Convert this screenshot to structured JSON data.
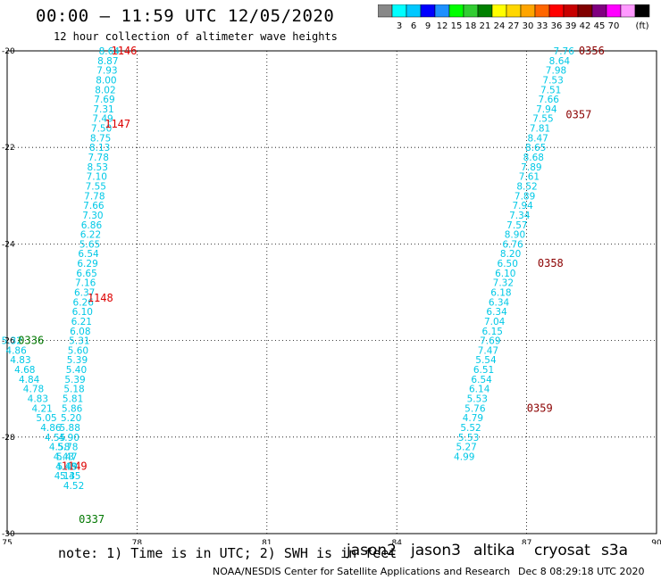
{
  "header": {
    "title": "00:00 – 11:59 UTC 12/05/2020",
    "subtitle": "12 hour collection of altimeter wave heights"
  },
  "colorbar": {
    "unit_label": "(ft)",
    "ticks": [
      "3",
      "6",
      "9",
      "12",
      "15",
      "18",
      "21",
      "24",
      "27",
      "30",
      "33",
      "36",
      "39",
      "42",
      "45",
      "70"
    ],
    "colors": [
      "#888888",
      "#00ffff",
      "#00c8ff",
      "#0000ff",
      "#1e90ff",
      "#00ff00",
      "#32cd32",
      "#008000",
      "#ffff00",
      "#ffd700",
      "#ffa500",
      "#ff6600",
      "#ff0000",
      "#c80000",
      "#800000",
      "#800080",
      "#ff00ff",
      "#ff99ff",
      "#000000"
    ]
  },
  "map": {
    "x_ticks": [
      "75",
      "78",
      "81",
      "84",
      "87",
      "90"
    ],
    "y_ticks": [
      "-20",
      "-22",
      "-24",
      "-26",
      "-28",
      "-30"
    ],
    "lon_range": [
      75,
      90
    ],
    "lat_range": [
      -30,
      -20
    ],
    "grid": true
  },
  "tracks": [
    {
      "name": "west-cyan",
      "color": "#00c8e6",
      "points": [
        [
          77.6,
          -20.0,
          "8.64"
        ],
        [
          77.57,
          -20.2,
          "8.87"
        ],
        [
          77.55,
          -20.4,
          "7.93"
        ],
        [
          77.53,
          -20.6,
          "8.00"
        ],
        [
          77.51,
          -20.8,
          "8.02"
        ],
        [
          77.49,
          -21.0,
          "7.69"
        ],
        [
          77.47,
          -21.2,
          "7.31"
        ],
        [
          77.45,
          -21.4,
          "7.49"
        ],
        [
          77.42,
          -21.6,
          "7.50"
        ],
        [
          77.4,
          -21.8,
          "8.75"
        ],
        [
          77.38,
          -22.0,
          "8.13"
        ],
        [
          77.35,
          -22.2,
          "7.78"
        ],
        [
          77.33,
          -22.4,
          "8.53"
        ],
        [
          77.31,
          -22.6,
          "7.10"
        ],
        [
          77.29,
          -22.8,
          "7.55"
        ],
        [
          77.26,
          -23.0,
          "7.78"
        ],
        [
          77.24,
          -23.2,
          "7.66"
        ],
        [
          77.22,
          -23.4,
          "7.30"
        ],
        [
          77.19,
          -23.6,
          "6.86"
        ],
        [
          77.17,
          -23.8,
          "6.22"
        ],
        [
          77.15,
          -24.0,
          "5.65"
        ],
        [
          77.12,
          -24.2,
          "6.54"
        ],
        [
          77.1,
          -24.4,
          "6.29"
        ],
        [
          77.08,
          -24.6,
          "6.65"
        ],
        [
          77.05,
          -24.8,
          "7.16"
        ],
        [
          77.03,
          -25.0,
          "6.37"
        ],
        [
          77.0,
          -25.2,
          "6.26"
        ],
        [
          76.98,
          -25.4,
          "6.10"
        ],
        [
          76.96,
          -25.6,
          "6.21"
        ],
        [
          76.93,
          -25.8,
          "6.08"
        ],
        [
          76.91,
          -26.0,
          "5.31"
        ],
        [
          76.88,
          -26.2,
          "5.60"
        ],
        [
          76.86,
          -26.4,
          "5.39"
        ],
        [
          76.84,
          -26.6,
          "5.40"
        ],
        [
          76.81,
          -26.8,
          "5.39"
        ],
        [
          76.79,
          -27.0,
          "5.18"
        ],
        [
          76.76,
          -27.2,
          "5.81"
        ],
        [
          76.74,
          -27.4,
          "5.86"
        ],
        [
          76.72,
          -27.6,
          "5.20"
        ],
        [
          76.69,
          -27.8,
          "5.88"
        ],
        [
          76.67,
          -28.0,
          "4.90"
        ],
        [
          76.64,
          -28.2,
          "5.78"
        ],
        [
          76.62,
          -28.4,
          "5.47"
        ],
        [
          76.6,
          -28.6,
          "4.48"
        ],
        [
          76.57,
          -28.8,
          "4.13"
        ]
      ],
      "time_labels": [
        [
          78.0,
          -20.0,
          "1146"
        ],
        [
          77.85,
          -21.52,
          "1147"
        ],
        [
          77.45,
          -25.12,
          "1148"
        ],
        [
          76.85,
          -28.6,
          "1149"
        ]
      ],
      "time_color": "#dd0000"
    },
    {
      "name": "west-jason3",
      "color": "#00c8e6",
      "points": [
        [
          75.35,
          -26.0,
          "5.32"
        ],
        [
          75.45,
          -26.2,
          "4.86"
        ],
        [
          75.55,
          -26.4,
          "4.83"
        ],
        [
          75.65,
          -26.6,
          "4.68"
        ],
        [
          75.75,
          -26.8,
          "4.84"
        ],
        [
          75.85,
          -27.0,
          "4.78"
        ],
        [
          75.95,
          -27.2,
          "4.83"
        ],
        [
          76.05,
          -27.4,
          "4.21"
        ],
        [
          76.15,
          -27.6,
          "5.05"
        ],
        [
          76.25,
          -27.8,
          "4.86"
        ],
        [
          76.35,
          -28.0,
          "4.55"
        ],
        [
          76.45,
          -28.2,
          "4.58"
        ],
        [
          76.55,
          -28.4,
          "4.43"
        ],
        [
          76.63,
          -28.6,
          "5.49"
        ],
        [
          76.7,
          -28.8,
          "5.45"
        ],
        [
          76.78,
          -29.0,
          "4.52"
        ]
      ],
      "time_labels": [
        [
          75.85,
          -26.0,
          "0336"
        ],
        [
          77.25,
          -29.7,
          "0337"
        ]
      ],
      "time_color": "#007700"
    },
    {
      "name": "east-cyan",
      "color": "#00c8e6",
      "points": [
        [
          88.1,
          -20.0,
          "7.76"
        ],
        [
          88.0,
          -20.2,
          "8.64"
        ],
        [
          87.92,
          -20.4,
          "7.98"
        ],
        [
          87.85,
          -20.6,
          "7.53"
        ],
        [
          87.8,
          -20.8,
          "7.51"
        ],
        [
          87.75,
          -21.0,
          "7.66"
        ],
        [
          87.7,
          -21.2,
          "7.94"
        ],
        [
          87.62,
          -21.4,
          "7.55"
        ],
        [
          87.55,
          -21.6,
          "7.81"
        ],
        [
          87.5,
          -21.8,
          "8.47"
        ],
        [
          87.45,
          -22.0,
          "8.65"
        ],
        [
          87.4,
          -22.2,
          "8.68"
        ],
        [
          87.35,
          -22.4,
          "7.89"
        ],
        [
          87.3,
          -22.6,
          "7.61"
        ],
        [
          87.25,
          -22.8,
          "8.52"
        ],
        [
          87.2,
          -23.0,
          "7.89"
        ],
        [
          87.15,
          -23.2,
          "7.94"
        ],
        [
          87.08,
          -23.4,
          "7.34"
        ],
        [
          87.02,
          -23.6,
          "7.57"
        ],
        [
          86.97,
          -23.8,
          "8.90"
        ],
        [
          86.92,
          -24.0,
          "6.76"
        ],
        [
          86.87,
          -24.2,
          "8.20"
        ],
        [
          86.8,
          -24.4,
          "6.50"
        ],
        [
          86.75,
          -24.6,
          "6.10"
        ],
        [
          86.7,
          -24.8,
          "7.32"
        ],
        [
          86.65,
          -25.0,
          "6.18"
        ],
        [
          86.6,
          -25.2,
          "6.34"
        ],
        [
          86.55,
          -25.4,
          "6.34"
        ],
        [
          86.5,
          -25.6,
          "7.04"
        ],
        [
          86.45,
          -25.8,
          "6.15"
        ],
        [
          86.4,
          -26.0,
          "7.69"
        ],
        [
          86.35,
          -26.2,
          "7.47"
        ],
        [
          86.3,
          -26.4,
          "5.54"
        ],
        [
          86.25,
          -26.6,
          "6.51"
        ],
        [
          86.2,
          -26.8,
          "6.54"
        ],
        [
          86.15,
          -27.0,
          "6.14"
        ],
        [
          86.1,
          -27.2,
          "5.53"
        ],
        [
          86.05,
          -27.4,
          "5.76"
        ],
        [
          86.0,
          -27.6,
          "4.79"
        ],
        [
          85.95,
          -27.8,
          "5.52"
        ],
        [
          85.9,
          -28.0,
          "5.53"
        ],
        [
          85.85,
          -28.2,
          "5.27"
        ],
        [
          85.8,
          -28.4,
          "4.99"
        ]
      ],
      "time_labels": [
        [
          88.8,
          -20.0,
          "0356"
        ],
        [
          88.5,
          -21.32,
          "0357"
        ],
        [
          87.85,
          -24.4,
          "0358"
        ],
        [
          87.6,
          -27.4,
          "0359"
        ]
      ],
      "time_color": "#8b0000"
    }
  ],
  "footer": {
    "note": "note:  1) Time is in UTC; 2) SWH is in feet",
    "satellites": [
      {
        "name": "jason2",
        "color": "#0000cc"
      },
      {
        "name": "jason3",
        "color": "#009900"
      },
      {
        "name": "altika",
        "color": "#ff9900"
      },
      {
        "name": "cryosat",
        "color": "#cc0000"
      },
      {
        "name": "s3a",
        "color": "#8b0000"
      }
    ],
    "credit": "NOAA/NESDIS Center for Satellite Applications and Research",
    "datestamp": "Dec  8 08:29:18 UTC 2020"
  }
}
